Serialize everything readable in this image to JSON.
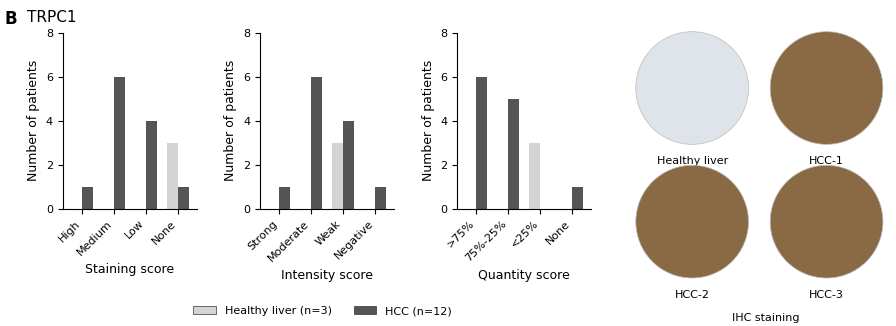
{
  "panel_label": "B",
  "title": "TRPC1",
  "chart_data": [
    {
      "type": "bar",
      "xlabel": "Staining score",
      "ylabel": "Number of patients",
      "categories": [
        "High",
        "Medium",
        "Low",
        "None"
      ],
      "series": [
        {
          "name": "Healthy liver (n=3)",
          "color": "#d4d4d4",
          "values": [
            0,
            0,
            0,
            3
          ]
        },
        {
          "name": "HCC (n=12)",
          "color": "#555555",
          "values": [
            1,
            6,
            4,
            1
          ]
        }
      ],
      "ylim": [
        0,
        8
      ],
      "yticks": [
        0,
        2,
        4,
        6,
        8
      ]
    },
    {
      "type": "bar",
      "xlabel": "Intensity score",
      "ylabel": "Number of patients",
      "categories": [
        "Strong",
        "Moderate",
        "Weak",
        "Negative"
      ],
      "series": [
        {
          "name": "Healthy liver (n=3)",
          "color": "#d4d4d4",
          "values": [
            0,
            0,
            3,
            0
          ]
        },
        {
          "name": "HCC (n=12)",
          "color": "#555555",
          "values": [
            1,
            6,
            4,
            1
          ]
        }
      ],
      "ylim": [
        0,
        8
      ],
      "yticks": [
        0,
        2,
        4,
        6,
        8
      ]
    },
    {
      "type": "bar",
      "xlabel": "Quantity score",
      "ylabel": "Number of patients",
      "categories": [
        ">75%",
        "75%-25%",
        "<25%",
        "None"
      ],
      "series": [
        {
          "name": "Healthy liver (n=3)",
          "color": "#d4d4d4",
          "values": [
            0,
            0,
            3,
            0
          ]
        },
        {
          "name": "HCC (n=12)",
          "color": "#555555",
          "values": [
            6,
            5,
            0,
            1
          ]
        }
      ],
      "ylim": [
        0,
        8
      ],
      "yticks": [
        0,
        2,
        4,
        6,
        8
      ]
    }
  ],
  "ihc_panel": {
    "title": "IHC staining",
    "images": [
      "Healthy liver",
      "HCC-1",
      "HCC-2",
      "HCC-3"
    ]
  }
}
